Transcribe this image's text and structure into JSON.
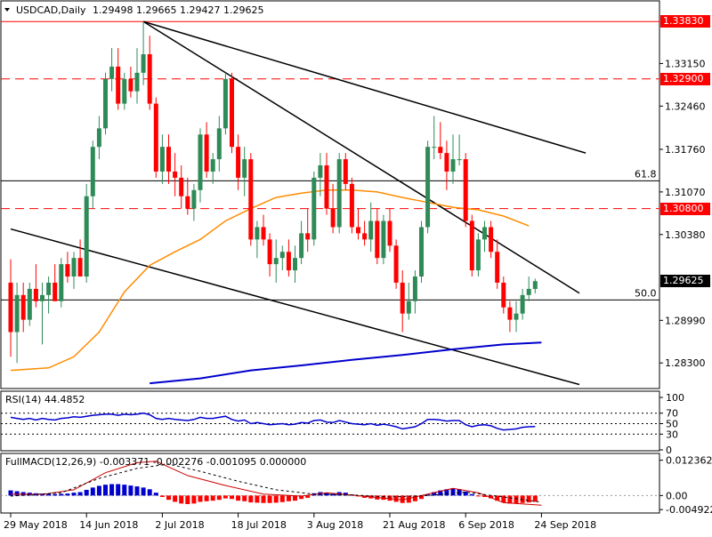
{
  "header": {
    "symbol": "USDCAD,Daily",
    "ohlc": "1.29498 1.29665 1.29427 1.29625"
  },
  "colors": {
    "bull": "#2e8b57",
    "bear": "#ff0000",
    "ma_fast": "#ff8c00",
    "ma_slow": "#0000cd",
    "rsi": "#0000cd",
    "resistance": "#ff0000",
    "label_bg": "#ff0000",
    "current_bg": "#000000"
  },
  "chart_data": [
    {
      "type": "candlestick",
      "title": "USDCAD,Daily",
      "x_labels": [
        "29 May 2018",
        "14 Jun 2018",
        "2 Jul 2018",
        "18 Jul 2018",
        "3 Aug 2018",
        "21 Aug 2018",
        "6 Sep 2018",
        "24 Sep 2018"
      ],
      "x_label_index": [
        0,
        12,
        24,
        36,
        48,
        60,
        72,
        84
      ],
      "ylim": [
        1.279,
        1.3415
      ],
      "y_ticks": [
        "1.33150",
        "1.32460",
        "1.31760",
        "1.31070",
        "1.30380",
        "1.28990",
        "1.28300"
      ],
      "candles": [
        [
          1.296,
          1.2998,
          1.284,
          1.288
        ],
        [
          1.288,
          1.296,
          1.283,
          1.294
        ],
        [
          1.294,
          1.296,
          1.288,
          1.29
        ],
        [
          1.29,
          1.296,
          1.289,
          1.295
        ],
        [
          1.295,
          1.299,
          1.292,
          1.293
        ],
        [
          1.293,
          1.296,
          1.286,
          1.294
        ],
        [
          1.294,
          1.297,
          1.291,
          1.296
        ],
        [
          1.296,
          1.299,
          1.293,
          1.293
        ],
        [
          1.293,
          1.3,
          1.292,
          1.299
        ],
        [
          1.299,
          1.301,
          1.296,
          1.297
        ],
        [
          1.297,
          1.301,
          1.295,
          1.3
        ],
        [
          1.3,
          1.303,
          1.297,
          1.297
        ],
        [
          1.297,
          1.312,
          1.296,
          1.31
        ],
        [
          1.31,
          1.319,
          1.308,
          1.318
        ],
        [
          1.318,
          1.323,
          1.316,
          1.321
        ],
        [
          1.321,
          1.33,
          1.32,
          1.329
        ],
        [
          1.329,
          1.334,
          1.327,
          1.331
        ],
        [
          1.331,
          1.334,
          1.324,
          1.325
        ],
        [
          1.325,
          1.33,
          1.324,
          1.329
        ],
        [
          1.329,
          1.331,
          1.326,
          1.327
        ],
        [
          1.327,
          1.334,
          1.325,
          1.33
        ],
        [
          1.33,
          1.3383,
          1.328,
          1.333
        ],
        [
          1.333,
          1.336,
          1.324,
          1.325
        ],
        [
          1.325,
          1.326,
          1.313,
          1.314
        ],
        [
          1.314,
          1.32,
          1.312,
          1.318
        ],
        [
          1.318,
          1.32,
          1.312,
          1.314
        ],
        [
          1.314,
          1.317,
          1.31,
          1.313
        ],
        [
          1.313,
          1.315,
          1.308,
          1.31
        ],
        [
          1.31,
          1.313,
          1.307,
          1.308
        ],
        [
          1.308,
          1.312,
          1.306,
          1.311
        ],
        [
          1.311,
          1.321,
          1.309,
          1.32
        ],
        [
          1.32,
          1.322,
          1.313,
          1.314
        ],
        [
          1.314,
          1.317,
          1.312,
          1.316
        ],
        [
          1.316,
          1.323,
          1.314,
          1.321
        ],
        [
          1.321,
          1.33,
          1.32,
          1.329
        ],
        [
          1.329,
          1.33,
          1.317,
          1.318
        ],
        [
          1.318,
          1.32,
          1.311,
          1.313
        ],
        [
          1.313,
          1.318,
          1.31,
          1.316
        ],
        [
          1.316,
          1.317,
          1.302,
          1.303
        ],
        [
          1.303,
          1.306,
          1.3,
          1.305
        ],
        [
          1.305,
          1.307,
          1.302,
          1.303
        ],
        [
          1.303,
          1.304,
          1.297,
          1.299
        ],
        [
          1.299,
          1.303,
          1.296,
          1.3
        ],
        [
          1.3,
          1.302,
          1.298,
          1.301
        ],
        [
          1.301,
          1.303,
          1.297,
          1.298
        ],
        [
          1.298,
          1.302,
          1.296,
          1.3
        ],
        [
          1.3,
          1.306,
          1.299,
          1.304
        ],
        [
          1.304,
          1.308,
          1.301,
          1.303
        ],
        [
          1.303,
          1.314,
          1.302,
          1.313
        ],
        [
          1.313,
          1.317,
          1.31,
          1.315
        ],
        [
          1.315,
          1.317,
          1.307,
          1.308
        ],
        [
          1.308,
          1.312,
          1.304,
          1.305
        ],
        [
          1.305,
          1.317,
          1.304,
          1.316
        ],
        [
          1.316,
          1.317,
          1.311,
          1.312
        ],
        [
          1.312,
          1.313,
          1.304,
          1.305
        ],
        [
          1.305,
          1.308,
          1.303,
          1.304
        ],
        [
          1.304,
          1.306,
          1.302,
          1.303
        ],
        [
          1.303,
          1.309,
          1.301,
          1.306
        ],
        [
          1.306,
          1.308,
          1.299,
          1.3
        ],
        [
          1.3,
          1.307,
          1.299,
          1.306
        ],
        [
          1.306,
          1.308,
          1.301,
          1.302
        ],
        [
          1.302,
          1.303,
          1.295,
          1.296
        ],
        [
          1.296,
          1.298,
          1.288,
          1.291
        ],
        [
          1.291,
          1.296,
          1.29,
          1.293
        ],
        [
          1.293,
          1.298,
          1.291,
          1.297
        ],
        [
          1.297,
          1.306,
          1.296,
          1.305
        ],
        [
          1.305,
          1.319,
          1.304,
          1.318
        ],
        [
          1.318,
          1.323,
          1.316,
          1.318
        ],
        [
          1.318,
          1.322,
          1.316,
          1.317
        ],
        [
          1.317,
          1.319,
          1.311,
          1.314
        ],
        [
          1.314,
          1.32,
          1.312,
          1.316
        ],
        [
          1.316,
          1.32,
          1.315,
          1.316
        ],
        [
          1.316,
          1.317,
          1.305,
          1.306
        ],
        [
          1.306,
          1.307,
          1.297,
          1.298
        ],
        [
          1.298,
          1.304,
          1.297,
          1.303
        ],
        [
          1.303,
          1.306,
          1.301,
          1.305
        ],
        [
          1.305,
          1.306,
          1.3,
          1.301
        ],
        [
          1.301,
          1.303,
          1.295,
          1.296
        ],
        [
          1.296,
          1.297,
          1.291,
          1.292
        ],
        [
          1.292,
          1.293,
          1.288,
          1.29
        ],
        [
          1.29,
          1.293,
          1.288,
          1.291
        ],
        [
          1.291,
          1.295,
          1.29,
          1.294
        ],
        [
          1.294,
          1.297,
          1.293,
          1.295
        ],
        [
          1.29498,
          1.29665,
          1.29427,
          1.29625
        ]
      ],
      "ma_fast": [
        [
          0,
          1.2818
        ],
        [
          6,
          1.2822
        ],
        [
          10,
          1.284
        ],
        [
          14,
          1.288
        ],
        [
          18,
          1.2945
        ],
        [
          22,
          1.2988
        ],
        [
          26,
          1.301
        ],
        [
          30,
          1.303
        ],
        [
          34,
          1.306
        ],
        [
          38,
          1.308
        ],
        [
          42,
          1.3098
        ],
        [
          46,
          1.3105
        ],
        [
          50,
          1.311
        ],
        [
          54,
          1.311
        ],
        [
          58,
          1.3107
        ],
        [
          62,
          1.3098
        ],
        [
          66,
          1.309
        ],
        [
          70,
          1.3082
        ],
        [
          74,
          1.3078
        ],
        [
          78,
          1.3068
        ],
        [
          82,
          1.3052
        ]
      ],
      "ma_slow": [
        [
          22,
          1.2797
        ],
        [
          30,
          1.2805
        ],
        [
          38,
          1.2818
        ],
        [
          46,
          1.2826
        ],
        [
          54,
          1.2835
        ],
        [
          62,
          1.2843
        ],
        [
          70,
          1.2852
        ],
        [
          78,
          1.286
        ],
        [
          84,
          1.2863
        ]
      ],
      "trendlines": [
        {
          "from": [
            21,
            1.3383
          ],
          "to": [
            90,
            1.2943
          ]
        },
        {
          "from": [
            21,
            1.3383
          ],
          "to": [
            91,
            1.317
          ]
        },
        {
          "from": [
            0,
            1.3047
          ],
          "to": [
            90,
            1.2795
          ]
        }
      ],
      "horizontal_levels": [
        {
          "value": 1.3383,
          "label": "1.33830",
          "style": "solid",
          "color": "#ff0000"
        },
        {
          "value": 1.329,
          "label": "1.32900",
          "style": "dashed",
          "color": "#ff0000"
        },
        {
          "value": 1.308,
          "label": "1.30800",
          "style": "dashed",
          "color": "#ff0000"
        },
        {
          "value": 1.3125,
          "label": "61.8",
          "style": "solid",
          "color": "#000000"
        },
        {
          "value": 1.2932,
          "label": "50.0",
          "style": "solid",
          "color": "#000000"
        }
      ],
      "current_price": "1.29625"
    },
    {
      "type": "line",
      "title": "RSI(14) 44.4852",
      "ylim": [
        0,
        100
      ],
      "levels": [
        30,
        50,
        70
      ],
      "y_ticks": [
        "100",
        "70",
        "50",
        "30",
        "0"
      ],
      "values": [
        62,
        60,
        58,
        60,
        57,
        60,
        58,
        57,
        60,
        61,
        63,
        62,
        64,
        66,
        67,
        68,
        68,
        66,
        68,
        67,
        68,
        70,
        67,
        60,
        58,
        60,
        58,
        57,
        56,
        58,
        62,
        60,
        60,
        62,
        64,
        58,
        55,
        57,
        50,
        52,
        50,
        48,
        49,
        50,
        48,
        49,
        52,
        51,
        56,
        57,
        53,
        52,
        56,
        53,
        50,
        49,
        48,
        50,
        47,
        49,
        47,
        44,
        40,
        42,
        44,
        50,
        58,
        58,
        57,
        55,
        56,
        56,
        48,
        44,
        47,
        48,
        46,
        41,
        38,
        39,
        40,
        43,
        44,
        44.4852
      ]
    },
    {
      "type": "bar",
      "title": "FullMACD(12,26,9) -0.003371 -0.002276 -0.001095 0.000000",
      "y_ticks": [
        "0.012362",
        "0.00",
        "-0.004922"
      ],
      "ylim": [
        -0.0058,
        0.0135
      ],
      "histogram": [
        0.0018,
        0.0015,
        0.0012,
        0.001,
        0.0008,
        0.0007,
        0.0006,
        0.0005,
        0.0006,
        0.0007,
        0.001,
        0.0012,
        0.002,
        0.0028,
        0.0034,
        0.0038,
        0.004,
        0.004,
        0.0038,
        0.0035,
        0.0032,
        0.0028,
        0.0022,
        0.001,
        -0.0005,
        -0.0015,
        -0.0022,
        -0.0028,
        -0.003,
        -0.0028,
        -0.0022,
        -0.002,
        -0.0018,
        -0.0015,
        -0.001,
        -0.0012,
        -0.0018,
        -0.002,
        -0.0024,
        -0.0025,
        -0.0026,
        -0.0026,
        -0.0025,
        -0.0023,
        -0.002,
        -0.0018,
        -0.0012,
        -0.0008,
        0.0008,
        0.0012,
        0.001,
        0.0006,
        0.0012,
        0.001,
        0.0004,
        -0.0002,
        -0.0008,
        -0.001,
        -0.0014,
        -0.0015,
        -0.0018,
        -0.0022,
        -0.0026,
        -0.0025,
        -0.002,
        -0.0012,
        0.0004,
        0.0012,
        0.0018,
        0.0022,
        0.0025,
        0.0022,
        0.0014,
        0.0005,
        -0.0002,
        -0.0005,
        -0.001,
        -0.0018,
        -0.0024,
        -0.0028,
        -0.0028,
        -0.0026,
        -0.0024,
        -0.0022
      ],
      "macd_line": [
        [
          0,
          0.0005
        ],
        [
          5,
          0.0004
        ],
        [
          10,
          0.002
        ],
        [
          15,
          0.008
        ],
        [
          20,
          0.0115
        ],
        [
          23,
          0.012
        ],
        [
          28,
          0.007
        ],
        [
          34,
          0.0035
        ],
        [
          40,
          0.0005
        ],
        [
          46,
          -0.0002
        ],
        [
          50,
          0.001
        ],
        [
          56,
          -0.0003
        ],
        [
          62,
          -0.0015
        ],
        [
          66,
          0.0005
        ],
        [
          70,
          0.0025
        ],
        [
          74,
          0.001
        ],
        [
          78,
          -0.0025
        ],
        [
          84,
          -0.0034
        ]
      ],
      "signal_line": [
        [
          0,
          -0.0002
        ],
        [
          8,
          0.001
        ],
        [
          14,
          0.006
        ],
        [
          20,
          0.0095
        ],
        [
          25,
          0.011
        ],
        [
          30,
          0.0085
        ],
        [
          36,
          0.005
        ],
        [
          42,
          0.002
        ],
        [
          48,
          0.0005
        ],
        [
          54,
          0.0002
        ],
        [
          60,
          -0.0005
        ],
        [
          66,
          0.0
        ],
        [
          72,
          0.0012
        ],
        [
          78,
          -0.0005
        ],
        [
          84,
          -0.0023
        ]
      ]
    }
  ]
}
